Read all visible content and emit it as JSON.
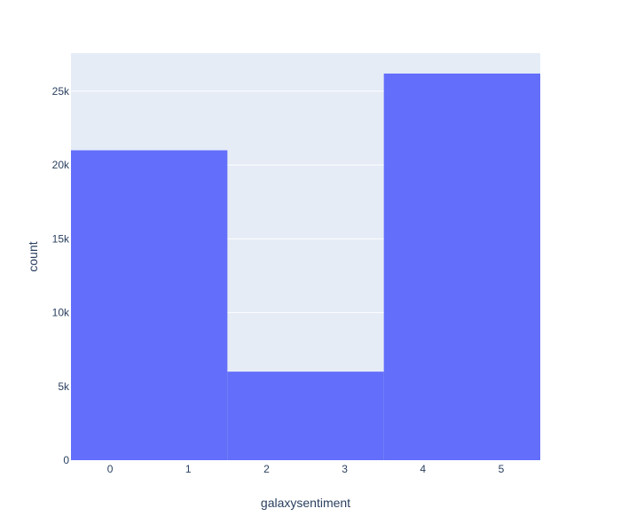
{
  "chart_data": {
    "type": "bar",
    "title": "",
    "xlabel": "galaxysentiment",
    "ylabel": "count",
    "x_ticks": [
      "0",
      "1",
      "2",
      "3",
      "4",
      "5"
    ],
    "y_ticks": [
      {
        "value": 0,
        "label": "0"
      },
      {
        "value": 5000,
        "label": "5k"
      },
      {
        "value": 10000,
        "label": "10k"
      },
      {
        "value": 15000,
        "label": "15k"
      },
      {
        "value": 20000,
        "label": "20k"
      },
      {
        "value": 25000,
        "label": "25k"
      }
    ],
    "bins": [
      {
        "x_start": -0.5,
        "x_end": 1.5,
        "value": 21000
      },
      {
        "x_start": 1.5,
        "x_end": 3.5,
        "value": 6000
      },
      {
        "x_start": 3.5,
        "x_end": 5.5,
        "value": 26200
      }
    ],
    "xlim": [
      -0.5,
      5.5
    ],
    "ylim": [
      0,
      27579
    ],
    "grid": true,
    "colors": {
      "bar": "#636efa",
      "plot_bg": "#e5ecf6",
      "grid": "#ffffff",
      "text": "#2a3f5f"
    }
  }
}
